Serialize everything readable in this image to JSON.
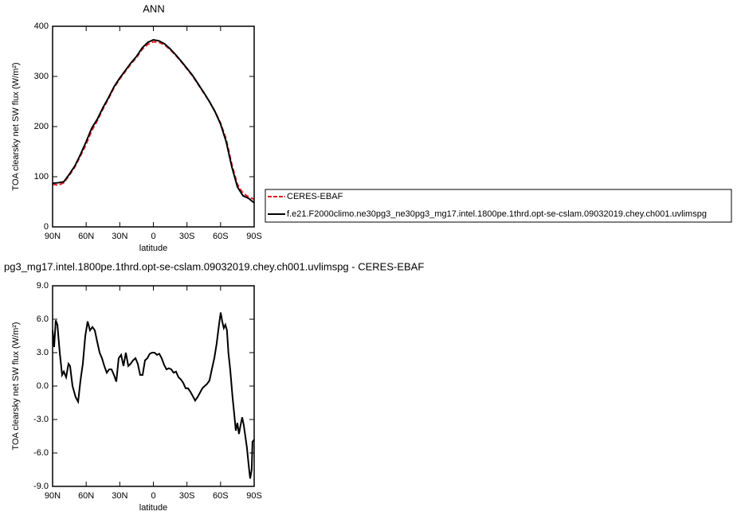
{
  "chart_data": [
    {
      "type": "line",
      "title": "ANN",
      "x": [
        90,
        85,
        80,
        75,
        70,
        65,
        60,
        55,
        50,
        45,
        40,
        35,
        30,
        25,
        20,
        15,
        10,
        5,
        0,
        -5,
        -10,
        -15,
        -20,
        -25,
        -30,
        -35,
        -40,
        -45,
        -50,
        -55,
        -60,
        -65,
        -70,
        -75,
        -80,
        -85,
        -90
      ],
      "series": [
        {
          "name": "CERES-EBAF",
          "color": "#e41a1c",
          "linestyle": "dashed",
          "values": [
            85,
            83,
            88,
            103,
            120,
            142,
            165,
            192,
            212,
            235,
            256,
            278,
            295,
            310,
            325,
            338,
            354,
            364,
            369,
            368,
            363,
            353,
            342,
            329,
            315,
            301,
            284,
            267,
            250,
            230,
            207,
            175,
            125,
            85,
            67,
            60,
            55
          ]
        },
        {
          "name": "f.e21.F2000climo.ne30pg3_ne30pg3_mg17.intel.1800pe.1thrd.opt-se-cslam.09032019.chey.ch001.uvlimspg",
          "color": "#000000",
          "linestyle": "solid",
          "values": [
            87,
            88,
            90,
            105,
            122,
            145,
            170,
            197,
            215,
            238,
            258,
            280,
            297,
            312,
            327,
            340,
            357,
            368,
            373,
            371,
            365,
            355,
            343,
            330,
            316,
            302,
            285,
            268,
            250,
            230,
            205,
            170,
            120,
            80,
            62,
            57,
            48
          ]
        }
      ],
      "xlim": [
        90,
        -90
      ],
      "xticks": [
        {
          "value": 90,
          "label": "90N"
        },
        {
          "value": 60,
          "label": "60N"
        },
        {
          "value": 30,
          "label": "30N"
        },
        0,
        {
          "value": -30,
          "label": "30S"
        },
        {
          "value": -60,
          "label": "60S"
        },
        {
          "value": -90,
          "label": "90S"
        }
      ],
      "ylim": [
        0,
        400
      ],
      "yticks": [
        0,
        100,
        200,
        300,
        400
      ],
      "xlabel": "latitude",
      "ylabel": "TOA clearsky net SW flux (W/m²)",
      "legend": "right"
    },
    {
      "type": "line",
      "title": "pg3_mg17.intel.1800pe.1thrd.opt-se-cslam.09032019.chey.ch001.uvlimspg - CERES-EBAF",
      "x": [
        90,
        88.6,
        87.2,
        85.7,
        83.6,
        81.5,
        80.0,
        77.9,
        75.8,
        74.4,
        72.2,
        69.4,
        67.2,
        65.1,
        63.0,
        60.8,
        58.7,
        56.6,
        54.4,
        52.3,
        50.2,
        48.0,
        45.9,
        43.8,
        41.6,
        39.5,
        37.4,
        35.2,
        33.1,
        31.0,
        28.8,
        26.7,
        24.6,
        22.4,
        20.3,
        18.2,
        16.0,
        13.9,
        11.8,
        9.6,
        7.5,
        5.4,
        3.2,
        1.1,
        -1.0,
        -3.2,
        -5.3,
        -7.4,
        -9.6,
        -11.7,
        -13.8,
        -16.0,
        -18.1,
        -20.2,
        -22.4,
        -24.5,
        -26.6,
        -28.8,
        -30.9,
        -33.0,
        -35.2,
        -37.3,
        -39.4,
        -41.6,
        -43.7,
        -45.8,
        -48.0,
        -50.1,
        -52.2,
        -54.4,
        -56.5,
        -58.6,
        -60.1,
        -61.5,
        -62.9,
        -64.3,
        -65.7,
        -67.0,
        -68.6,
        -70.7,
        -72.2,
        -73.6,
        -75.0,
        -76.4,
        -77.9,
        -79.3,
        -80.7,
        -82.1,
        -83.5,
        -85.0,
        -86.4,
        -87.8,
        -88.5,
        -90
      ],
      "values": [
        5.0,
        3.5,
        5.9,
        5.5,
        3.0,
        1.0,
        1.3,
        0.8,
        2.0,
        1.8,
        0.0,
        -1.0,
        -1.4,
        0.5,
        2.0,
        4.5,
        5.8,
        5.0,
        5.3,
        5.0,
        4.0,
        3.0,
        2.5,
        1.8,
        1.2,
        1.5,
        1.5,
        1.0,
        0.4,
        2.5,
        2.8,
        1.8,
        3.0,
        1.8,
        2.0,
        2.3,
        2.5,
        2.0,
        1.0,
        1.0,
        2.3,
        2.5,
        2.9,
        3.0,
        3.0,
        2.8,
        2.9,
        2.5,
        1.9,
        1.5,
        1.6,
        1.5,
        1.2,
        1.3,
        0.8,
        0.6,
        0.3,
        -0.2,
        -0.2,
        -0.5,
        -0.9,
        -1.3,
        -1.0,
        -0.6,
        -0.2,
        0.0,
        0.2,
        0.5,
        1.5,
        2.5,
        3.8,
        5.5,
        6.6,
        5.8,
        5.2,
        5.5,
        5.0,
        3.0,
        1.5,
        -1.0,
        -2.5,
        -4.0,
        -3.3,
        -4.3,
        -3.5,
        -2.8,
        -3.5,
        -4.5,
        -5.5,
        -7.0,
        -8.3,
        -7.5,
        -5.0,
        -4.8
      ],
      "color": "#000000",
      "xlim": [
        90,
        -90
      ],
      "xticks": [
        {
          "value": 90,
          "label": "90N"
        },
        {
          "value": 60,
          "label": "60N"
        },
        {
          "value": 30,
          "label": "30N"
        },
        0,
        {
          "value": -30,
          "label": "30S"
        },
        {
          "value": -60,
          "label": "60S"
        },
        {
          "value": -90,
          "label": "90S"
        }
      ],
      "ylim": [
        -9,
        9
      ],
      "yticks": [
        {
          "value": -9,
          "label": "-9.0"
        },
        {
          "value": -6,
          "label": "-6.0"
        },
        {
          "value": -3,
          "label": "-3.0"
        },
        {
          "value": 0,
          "label": "0.0"
        },
        {
          "value": 3,
          "label": "3.0"
        },
        {
          "value": 6,
          "label": "6.0"
        },
        {
          "value": 9,
          "label": "9.0"
        }
      ],
      "xlabel": "latitude",
      "ylabel": "TOA clearsky net SW flux (W/m²)"
    }
  ]
}
